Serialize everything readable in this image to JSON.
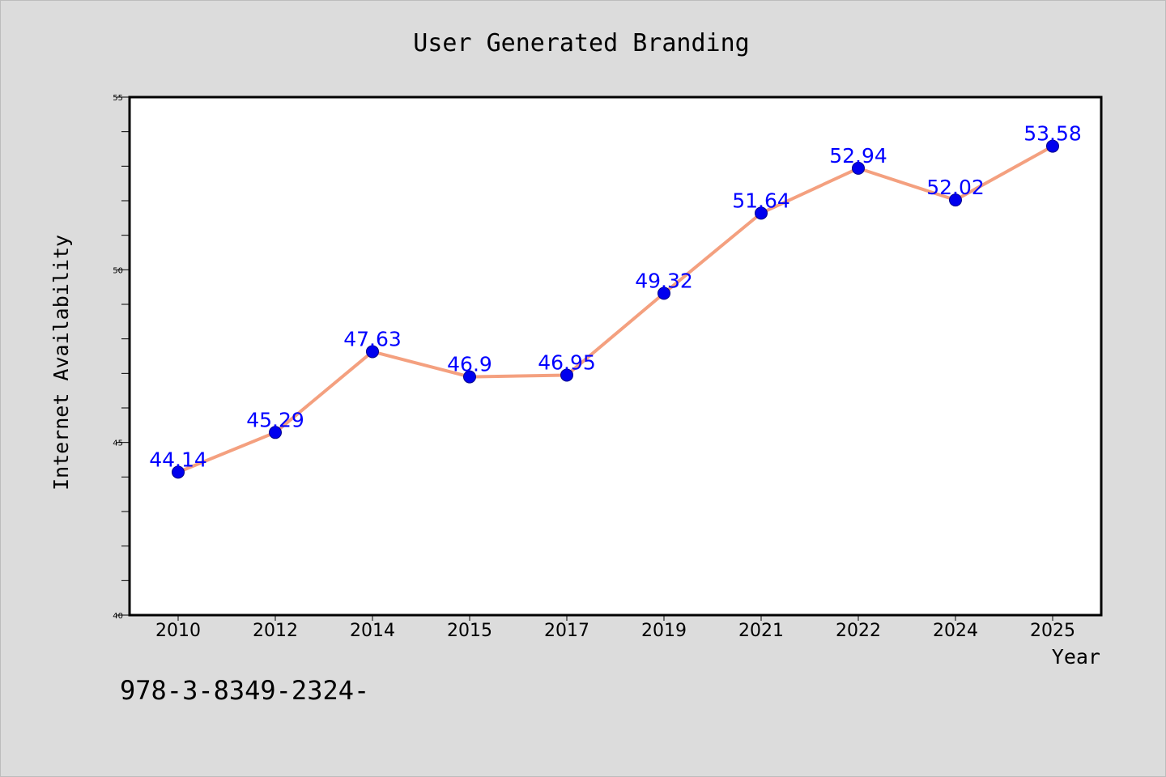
{
  "chart_data": {
    "type": "line",
    "title": "User Generated Branding",
    "xlabel": "Year",
    "ylabel": "Internet Availability",
    "categories": [
      "2010",
      "2012",
      "2014",
      "2015",
      "2017",
      "2019",
      "2021",
      "2022",
      "2024",
      "2025"
    ],
    "values": [
      44.14,
      45.29,
      47.63,
      46.9,
      46.95,
      49.32,
      51.64,
      52.94,
      52.02,
      53.58
    ],
    "data_labels": [
      "44.14",
      "45.29",
      "47.63",
      "46.9",
      "46.95",
      "49.32",
      "51.64",
      "52.94",
      "52.02",
      "53.58"
    ],
    "ylim": [
      40,
      55
    ],
    "yticks": [
      40,
      45,
      50,
      55
    ],
    "ytick_labels": [
      "40",
      "45",
      "50",
      "55"
    ],
    "yminor_step": 1,
    "grid": false,
    "legend": "none",
    "colors": {
      "line": "#f4a07f",
      "marker": "#0000ee",
      "label": "#0000ff",
      "background": "#dcdcdc",
      "plot_background": "#ffffff"
    }
  },
  "footer": {
    "isbn": "978-3-8349-2324-"
  }
}
